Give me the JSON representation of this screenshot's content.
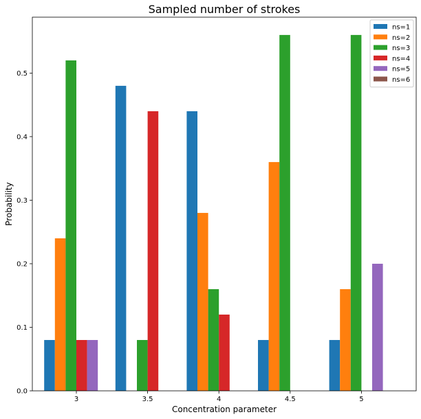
{
  "chart_data": {
    "type": "bar",
    "title": "Sampled number of strokes",
    "xlabel": "Concentration parameter",
    "ylabel": "Probability",
    "categories": [
      "3",
      "3.5",
      "4",
      "4.5",
      "5"
    ],
    "yticks": [
      "0.0",
      "0.1",
      "0.2",
      "0.3",
      "0.4",
      "0.5"
    ],
    "ylim": [
      0,
      0.588
    ],
    "grid": false,
    "legend_position": "top-right",
    "series": [
      {
        "name": "ns=1",
        "color": "#1f77b4",
        "values": [
          0.08,
          0.48,
          0.44,
          0.08,
          0.08
        ]
      },
      {
        "name": "ns=2",
        "color": "#ff7f0e",
        "values": [
          0.24,
          0.0,
          0.28,
          0.36,
          0.16
        ]
      },
      {
        "name": "ns=3",
        "color": "#2ca02c",
        "values": [
          0.52,
          0.08,
          0.16,
          0.56,
          0.56
        ]
      },
      {
        "name": "ns=4",
        "color": "#d62728",
        "values": [
          0.08,
          0.44,
          0.12,
          0.0,
          0.0
        ]
      },
      {
        "name": "ns=5",
        "color": "#9467bd",
        "values": [
          0.08,
          0.0,
          0.0,
          0.0,
          0.2
        ]
      },
      {
        "name": "ns=6",
        "color": "#8c564b",
        "values": [
          0.0,
          0.0,
          0.0,
          0.0,
          0.0
        ]
      }
    ]
  }
}
